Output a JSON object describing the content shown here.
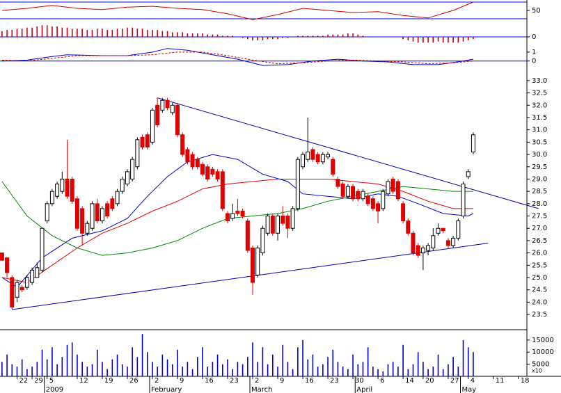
{
  "chart_data": [
    {
      "type": "line",
      "xlim": [
        -0.4,
        104.7
      ],
      "ylim": [
        25,
        75
      ],
      "yticks": [
        50
      ],
      "ref_lines": [
        30,
        70
      ],
      "ref_color": "#0000cc",
      "series": [
        {
          "color": "#cc0000",
          "x": [
            0,
            5,
            10,
            15,
            20,
            25,
            30,
            35,
            40,
            45,
            50,
            55,
            60,
            65,
            70,
            75,
            80,
            85,
            90,
            94
          ],
          "values": [
            50,
            55,
            62,
            55,
            52,
            58,
            60,
            55,
            52,
            42,
            28,
            40,
            55,
            50,
            45,
            47,
            38,
            32,
            50,
            70
          ]
        }
      ]
    },
    {
      "type": "bar",
      "xlim": [
        -0.4,
        104.7
      ],
      "ylim": [
        -1.2,
        1.2
      ],
      "yticks": [
        0
      ],
      "ref_lines": [
        0
      ],
      "ref_color": "#0000cc",
      "color": "#cc0000",
      "values": [
        0.5,
        0.6,
        0.6,
        0.7,
        0.7,
        0.8,
        0.8,
        0.9,
        1.0,
        1.0,
        0.9,
        0.9,
        0.8,
        0.8,
        0.7,
        0.7,
        0.7,
        0.6,
        0.6,
        0.7,
        0.7,
        0.6,
        0.6,
        0.7,
        0.7,
        0.8,
        0.8,
        0.7,
        0.7,
        0.6,
        0.6,
        0.6,
        0.5,
        0.5,
        0.4,
        0.4,
        0.4,
        0.3,
        0.3,
        0.3,
        0.3,
        0.2,
        0.2,
        0.2,
        0.1,
        0.1,
        0.1,
        0.0,
        -0.1,
        -0.2,
        -0.3,
        -0.3,
        -0.3,
        -0.2,
        -0.2,
        -0.2,
        -0.1,
        -0.1,
        0.0,
        0.1,
        0.1,
        0.1,
        0.1,
        0.1,
        0.1,
        0.2,
        0.2,
        0.2,
        0.2,
        0.3,
        0.3,
        0.2,
        0.1,
        0.0,
        0.0,
        0.0,
        0.0,
        0.0,
        0.0,
        0.0,
        -0.2,
        -0.3,
        -0.4,
        -0.5,
        -0.5,
        -0.5,
        -0.5,
        -0.4,
        -0.5,
        -0.5,
        -0.5,
        -0.5,
        -0.4,
        -0.3,
        -0.2
      ]
    },
    {
      "type": "line",
      "xlim": [
        -0.4,
        104.7
      ],
      "ylim": [
        -0.8,
        2
      ],
      "yticks": [
        0,
        1
      ],
      "ref_lines": [
        0
      ],
      "ref_color": "#0000cc",
      "series": [
        {
          "color": "#0000cc",
          "x": [
            0,
            5,
            10,
            13,
            20,
            25,
            30,
            33,
            37,
            42,
            47,
            52,
            57,
            62,
            67,
            72,
            77,
            82,
            87,
            92,
            94
          ],
          "values": [
            0.0,
            0.1,
            0.5,
            0.7,
            0.6,
            0.6,
            1.0,
            1.4,
            1.2,
            0.7,
            0.2,
            -0.5,
            -0.4,
            0.0,
            0.2,
            0.0,
            -0.1,
            -0.4,
            -0.4,
            0.0,
            0.2
          ]
        },
        {
          "color": "#cc0000",
          "dashed": true,
          "x": [
            0,
            5,
            10,
            15,
            20,
            25,
            30,
            35,
            40,
            45,
            50,
            55,
            60,
            65,
            70,
            75,
            80,
            85,
            90,
            94
          ],
          "values": [
            0.1,
            0.0,
            0.3,
            0.6,
            0.6,
            0.6,
            0.7,
            1.0,
            1.0,
            0.6,
            0.1,
            -0.3,
            -0.2,
            0.0,
            0.1,
            0.0,
            -0.1,
            -0.3,
            -0.2,
            0.0
          ]
        }
      ]
    },
    {
      "type": "candlestick",
      "xlim": [
        -0.4,
        104.7
      ],
      "ylim": [
        22.88,
        33.45
      ],
      "up_color": "#ffffff",
      "down_color": "#e00000",
      "yticks": [
        23.5,
        {
          "value": 24,
          "label": "24.0"
        },
        24.5,
        {
          "value": 25,
          "label": "25.0"
        },
        25.5,
        {
          "value": 26,
          "label": "26.0"
        },
        26.5,
        {
          "value": 27,
          "label": "27.0"
        },
        27.5,
        {
          "value": 28,
          "label": "28.0"
        },
        28.5,
        {
          "value": 29,
          "label": "29.0"
        },
        29.5,
        {
          "value": 30,
          "label": "30.0"
        },
        30.5,
        {
          "value": 31,
          "label": "31.0"
        },
        31.5,
        {
          "value": 32,
          "label": "32.0"
        },
        32.5,
        {
          "value": 33,
          "label": "33.0"
        }
      ],
      "open": [
        26.0,
        25.8,
        25.0,
        24.2,
        24.6,
        24.6,
        24.8,
        25.0,
        25.3,
        27.3,
        28.0,
        28.3,
        28.5,
        29.0,
        29.0,
        28.2,
        27.8,
        26.8,
        27.0,
        28.0,
        27.3,
        28.0,
        28.2,
        28.0,
        28.5,
        28.8,
        29.0,
        29.5,
        30.7,
        30.8,
        30.5,
        32.0,
        31.8,
        32.2,
        31.7,
        32.0,
        30.8,
        30.2,
        30.0,
        29.8,
        29.6,
        29.5,
        29.4,
        29.3,
        29.3,
        27.6,
        27.4,
        27.7,
        27.7,
        27.3,
        26.2,
        25.1,
        26.0,
        26.8,
        27.5,
        26.8,
        27.5,
        27.5,
        27.0,
        27.8,
        29.5,
        29.8,
        30.2,
        30.0,
        29.7,
        29.9,
        29.8,
        29.0,
        28.8,
        28.3,
        28.7,
        28.5,
        28.2,
        28.3,
        28.2,
        28.0,
        27.8,
        28.4,
        29.0,
        28.9,
        28.0,
        27.3,
        26.8,
        26.3,
        26.0,
        26.1,
        26.2,
        26.8,
        27.0,
        26.5,
        26.3,
        26.6,
        27.5,
        29.1,
        30.1
      ],
      "high": [
        26.0,
        25.8,
        25.1,
        24.9,
        24.7,
        25.1,
        25.4,
        25.6,
        27.0,
        28.1,
        28.6,
        28.9,
        29.3,
        30.6,
        29.1,
        28.3,
        27.9,
        27.3,
        28.1,
        28.2,
        27.9,
        28.1,
        28.3,
        28.6,
        29.1,
        29.4,
        29.9,
        30.7,
        30.8,
        30.9,
        31.9,
        32.3,
        32.3,
        32.3,
        32.1,
        32.1,
        30.9,
        30.3,
        30.1,
        29.9,
        29.7,
        29.6,
        29.5,
        29.4,
        29.4,
        27.7,
        28.0,
        28.2,
        27.8,
        27.4,
        26.3,
        26.3,
        27.1,
        27.6,
        27.6,
        27.6,
        27.9,
        27.6,
        27.9,
        29.9,
        30.1,
        31.5,
        30.3,
        30.1,
        30.1,
        30.1,
        29.9,
        29.1,
        28.9,
        28.8,
        28.8,
        28.6,
        28.6,
        28.4,
        28.3,
        28.1,
        28.6,
        29.0,
        29.1,
        29.0,
        28.1,
        27.4,
        26.9,
        26.4,
        26.3,
        26.4,
        27.0,
        27.2,
        27.0,
        26.6,
        26.7,
        27.4,
        28.9,
        29.4,
        30.9
      ],
      "low": [
        25.7,
        25.0,
        23.7,
        24.0,
        24.4,
        24.5,
        24.7,
        25.0,
        25.2,
        27.2,
        27.9,
        28.2,
        28.4,
        28.2,
        28.0,
        26.9,
        26.3,
        26.7,
        26.9,
        27.2,
        27.2,
        27.4,
        27.7,
        27.9,
        28.4,
        28.7,
        28.9,
        29.4,
        30.2,
        30.2,
        30.4,
        31.1,
        31.7,
        31.8,
        31.6,
        30.7,
        29.9,
        29.6,
        29.4,
        29.4,
        29.1,
        28.9,
        29.1,
        28.9,
        27.7,
        27.2,
        27.3,
        27.5,
        27.4,
        26.0,
        24.3,
        25.0,
        25.9,
        26.7,
        26.7,
        26.5,
        27.1,
        26.6,
        26.9,
        27.7,
        29.4,
        29.7,
        29.7,
        29.6,
        29.6,
        29.8,
        29.1,
        28.6,
        28.2,
        28.2,
        28.1,
        28.1,
        28.1,
        27.9,
        27.7,
        27.2,
        27.7,
        28.3,
        28.4,
        28.1,
        27.2,
        26.7,
        25.9,
        25.8,
        25.3,
        25.9,
        26.1,
        26.7,
        26.8,
        26.2,
        26.2,
        26.5,
        27.4,
        29.0,
        30.0
      ],
      "close": [
        25.7,
        25.2,
        23.8,
        24.8,
        24.5,
        25.0,
        25.3,
        25.4,
        27.0,
        28.0,
        28.5,
        28.8,
        29.0,
        28.3,
        28.1,
        27.0,
        26.8,
        27.2,
        28.0,
        27.3,
        27.8,
        27.5,
        27.8,
        28.5,
        29.0,
        29.3,
        29.8,
        30.6,
        30.3,
        30.3,
        31.8,
        31.2,
        32.2,
        31.9,
        32.0,
        30.8,
        30.0,
        29.7,
        29.5,
        29.5,
        29.2,
        29.0,
        29.2,
        29.0,
        27.8,
        27.3,
        27.6,
        27.6,
        27.5,
        26.1,
        24.8,
        26.2,
        27.0,
        27.5,
        26.8,
        27.5,
        27.2,
        27.0,
        27.8,
        29.8,
        30.0,
        30.1,
        29.8,
        29.7,
        30.0,
        30.0,
        29.2,
        28.7,
        28.3,
        28.7,
        28.2,
        28.2,
        28.5,
        28.0,
        27.8,
        27.7,
        28.5,
        28.9,
        28.5,
        28.2,
        27.3,
        26.8,
        26.0,
        25.9,
        26.2,
        26.3,
        26.7,
        27.0,
        26.9,
        26.3,
        26.6,
        27.3,
        28.8,
        29.3,
        30.8
      ],
      "series": [
        {
          "color": "#0000cc",
          "x": [
            0,
            3,
            8,
            14,
            20,
            25,
            29,
            33,
            37,
            42,
            47,
            52,
            57,
            60,
            65,
            70,
            75,
            79,
            83,
            88,
            93,
            94
          ],
          "values": [
            25.0,
            24.6,
            25.8,
            26.6,
            26.9,
            27.4,
            28.3,
            29.1,
            29.7,
            30.0,
            29.8,
            29.2,
            28.9,
            28.4,
            28.3,
            28.2,
            28.4,
            28.3,
            28.0,
            27.6,
            27.5,
            27.6
          ]
        },
        {
          "color": "#dd0000",
          "x": [
            0,
            5,
            10,
            15,
            20,
            25,
            30,
            35,
            40,
            45,
            50,
            55,
            60,
            65,
            70,
            75,
            80,
            85,
            90,
            94
          ],
          "values": [
            25.0,
            24.8,
            25.5,
            26.2,
            26.8,
            27.2,
            27.7,
            28.1,
            28.6,
            28.8,
            28.9,
            29.0,
            29.0,
            29.0,
            28.9,
            28.8,
            28.5,
            28.1,
            27.8,
            27.8
          ]
        },
        {
          "color": "#008800",
          "x": [
            0,
            5,
            10,
            15,
            20,
            25,
            30,
            35,
            40,
            45,
            50,
            55,
            60,
            65,
            70,
            75,
            80,
            85,
            90,
            94
          ],
          "values": [
            28.9,
            27.5,
            26.7,
            26.2,
            25.9,
            26.0,
            26.2,
            26.5,
            27.0,
            27.4,
            27.5,
            27.6,
            27.8,
            28.1,
            28.3,
            28.5,
            28.7,
            28.6,
            28.5,
            28.5
          ]
        }
      ],
      "trendlines": [
        {
          "color": "#0000aa",
          "x": [
            2,
            97
          ],
          "values": [
            23.7,
            26.4
          ]
        },
        {
          "color": "#0000aa",
          "x": [
            31,
            107
          ],
          "values": [
            32.3,
            27.8
          ]
        }
      ]
    },
    {
      "type": "bar",
      "xlim": [
        -0.4,
        104.7
      ],
      "ylim": [
        0,
        18700
      ],
      "yticks": [
        5000,
        10000,
        15000
      ],
      "unit_label": "x10",
      "color": "#0000cc",
      "values": [
        6000,
        9000,
        5000,
        4000,
        7000,
        3000,
        4000,
        6000,
        11000,
        7000,
        12000,
        5000,
        8000,
        13000,
        14000,
        9000,
        6000,
        4000,
        5000,
        11000,
        6000,
        3000,
        7000,
        9000,
        5000,
        4000,
        12000,
        8000,
        17500,
        10000,
        6000,
        4000,
        9000,
        7000,
        5000,
        11000,
        4000,
        6000,
        3000,
        8000,
        12000,
        4000,
        6000,
        9000,
        5000,
        7000,
        3000,
        6000,
        5000,
        8000,
        14000,
        6000,
        12000,
        5000,
        9000,
        4000,
        13000,
        6000,
        3000,
        12000,
        15000,
        7000,
        9000,
        4000,
        5000,
        8000,
        11000,
        6000,
        4000,
        3000,
        9000,
        5000,
        6000,
        12000,
        4000,
        3000,
        2000,
        5000,
        6000,
        4000,
        13000,
        3000,
        5000,
        10000,
        6000,
        3000,
        4000,
        9000,
        3000,
        5000,
        8000,
        4000,
        15000,
        12000,
        10000
      ],
      "xticks": [
        {
          "value": 3,
          "label": "22"
        },
        {
          "value": 6,
          "label": "29"
        },
        {
          "value": 9,
          "label": "5"
        },
        {
          "value": 15,
          "label": "12"
        },
        {
          "value": 20,
          "label": "19"
        },
        {
          "value": 25,
          "label": "26"
        },
        {
          "value": 30,
          "label": "2"
        },
        {
          "value": 35,
          "label": "9"
        },
        {
          "value": 40,
          "label": "16"
        },
        {
          "value": 45,
          "label": "23"
        },
        {
          "value": 50,
          "label": "2"
        },
        {
          "value": 55,
          "label": "9"
        },
        {
          "value": 60,
          "label": "16"
        },
        {
          "value": 65,
          "label": "23"
        },
        {
          "value": 70,
          "label": "30"
        },
        {
          "value": 75,
          "label": "6"
        },
        {
          "value": 80,
          "label": "14"
        },
        {
          "value": 84,
          "label": "20"
        },
        {
          "value": 89,
          "label": "27"
        },
        {
          "value": 93,
          "label": "4"
        },
        {
          "value": 98,
          "label": "11"
        },
        {
          "value": 103,
          "label": "18"
        }
      ],
      "months": [
        {
          "value": 9,
          "label": "2009"
        },
        {
          "value": 30,
          "label": "February"
        },
        {
          "value": 50,
          "label": "March"
        },
        {
          "value": 71,
          "label": "April"
        },
        {
          "value": 92,
          "label": "May"
        }
      ]
    }
  ]
}
